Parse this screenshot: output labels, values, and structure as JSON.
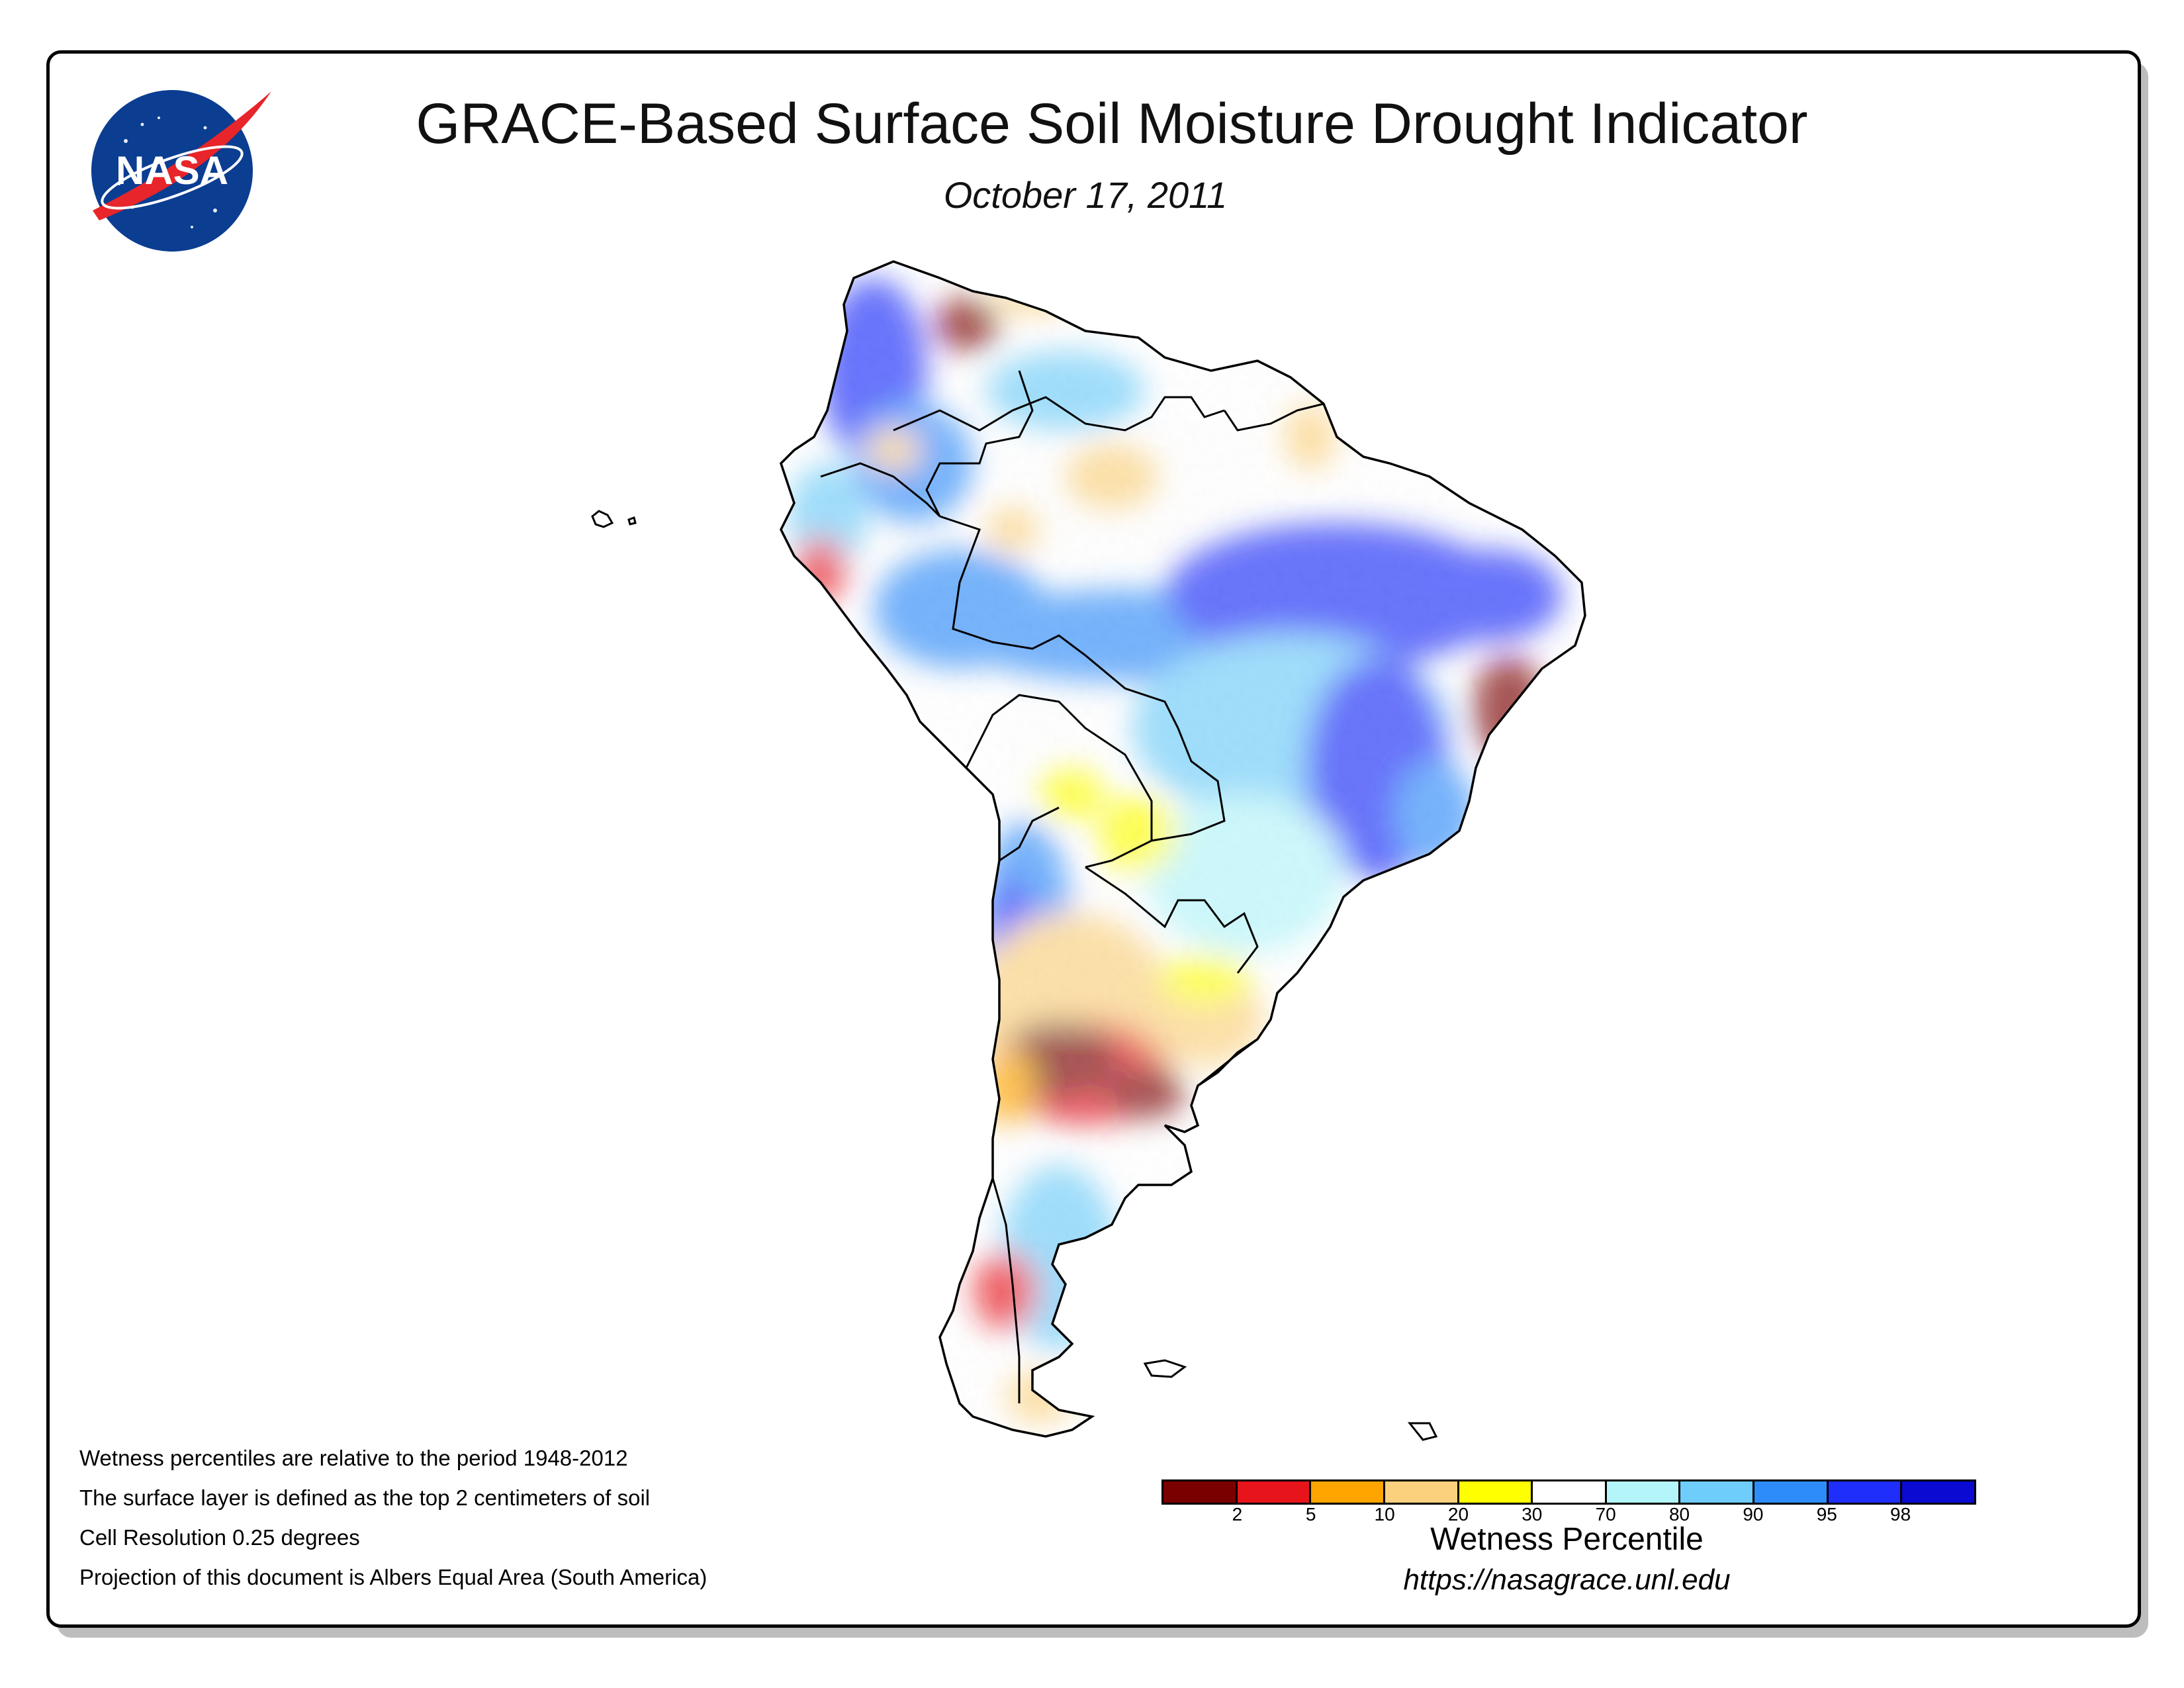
{
  "header": {
    "title": "GRACE-Based Surface Soil Moisture Drought Indicator",
    "date": "October 17, 2011",
    "logo_text": "NASA"
  },
  "notes": [
    "Wetness percentiles are relative to the period 1948-2012",
    "The surface layer is defined as the top 2 centimeters of soil",
    "Cell Resolution 0.25 degrees",
    "Projection of this document is Albers Equal Area (South America)"
  ],
  "legend": {
    "title": "Wetness Percentile",
    "colors": [
      "#7a0000",
      "#e8141c",
      "#ffa500",
      "#fcd17d",
      "#ffff00",
      "#ffffff",
      "#b4f5fa",
      "#6ecdfa",
      "#2e8cfa",
      "#1f2efa",
      "#0a0ad2"
    ],
    "ticks": [
      "2",
      "5",
      "10",
      "20",
      "30",
      "70",
      "80",
      "90",
      "95",
      "98"
    ]
  },
  "url": "https://nasagrace.unl.edu",
  "map": {
    "region": "South America",
    "colors": {
      "extreme_dry": "#7a0000",
      "very_dry": "#e8141c",
      "dry": "#ffa500",
      "moderate_dry": "#fcd17d",
      "abnormally_dry": "#ffff00",
      "normal": "#ffffff",
      "light_wet": "#b4f5fa",
      "wet": "#6ecdfa",
      "very_wet": "#2e8cfa",
      "extreme_wet": "#1f2efa",
      "exceptional_wet": "#0a0ad2"
    }
  }
}
